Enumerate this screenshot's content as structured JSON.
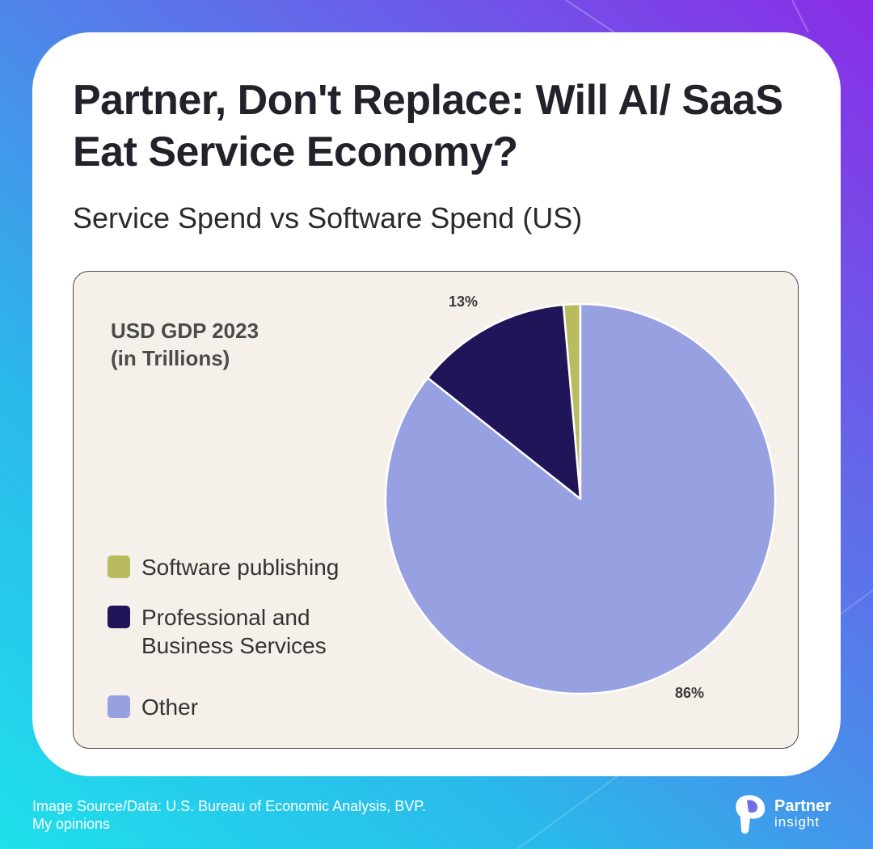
{
  "header": {
    "title": "Partner, Don't Replace: Will AI/ SaaS Eat Service Economy?",
    "subtitle": "Service Spend vs Software Spend (US)"
  },
  "chart_data": {
    "type": "pie",
    "title": "USD GDP 2023 (in Trillions)",
    "title_lines": [
      "USD GDP 2023",
      "(in Trillions)"
    ],
    "slices": [
      {
        "label": "Software publishing",
        "value": 1.4,
        "color": "#b8bc5e",
        "data_label": ""
      },
      {
        "label": "Professional and Business Services",
        "value": 13,
        "color": "#1f1558",
        "data_label": "13%"
      },
      {
        "label": "Other",
        "value": 86,
        "color": "#97a0e1",
        "data_label": "86%"
      }
    ],
    "legend_lines": [
      [
        "Software publishing"
      ],
      [
        "Professional and",
        "Business Services"
      ],
      [
        "Other"
      ]
    ],
    "legend_position": "left",
    "start_angle": "12 o'clock",
    "direction": "counter-clockwise",
    "slice_border_color": "#ffffff"
  },
  "footer": {
    "source_line1": "Image Source/Data: U.S. Bureau of Economic Analysis, BVP.",
    "source_line2": "My opinions"
  },
  "logo": {
    "line1": "Partner",
    "line2": "insight",
    "icon": "partner-insight-logo-icon"
  },
  "colors": {
    "gradient_start": "#1fe0ec",
    "gradient_end": "#8a2ce6",
    "panel_background": "#f5f1ea",
    "title_text": "#23222a"
  }
}
